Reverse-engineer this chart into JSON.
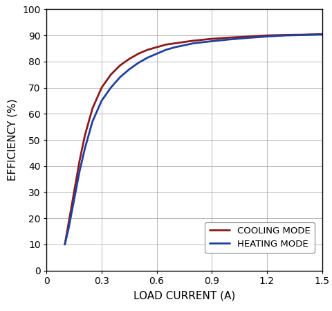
{
  "xlabel": "LOAD CURRENT (A)",
  "ylabel": "EFFICIENCY (%)",
  "xlim": [
    0,
    1.5
  ],
  "ylim": [
    0,
    100
  ],
  "xticks": [
    0,
    0.3,
    0.6,
    0.9,
    1.2,
    1.5
  ],
  "yticks": [
    0,
    10,
    20,
    30,
    40,
    50,
    60,
    70,
    80,
    90,
    100
  ],
  "cooling_color": "#8B1A1A",
  "heating_color": "#2040A0",
  "cooling_label": "COOLING MODE",
  "heating_label": "HEATING MODE",
  "cooling_x": [
    0.1,
    0.12,
    0.15,
    0.18,
    0.21,
    0.25,
    0.3,
    0.35,
    0.4,
    0.45,
    0.5,
    0.55,
    0.6,
    0.65,
    0.7,
    0.8,
    0.9,
    1.0,
    1.1,
    1.2,
    1.3,
    1.4,
    1.5
  ],
  "cooling_y": [
    10,
    18,
    30,
    42,
    52,
    62,
    70,
    75,
    78.5,
    81,
    83,
    84.5,
    85.5,
    86.5,
    87.0,
    88.0,
    88.7,
    89.2,
    89.6,
    90.0,
    90.2,
    90.3,
    90.5
  ],
  "heating_x": [
    0.1,
    0.12,
    0.15,
    0.18,
    0.21,
    0.25,
    0.3,
    0.35,
    0.4,
    0.45,
    0.5,
    0.55,
    0.6,
    0.65,
    0.7,
    0.8,
    0.9,
    1.0,
    1.1,
    1.2,
    1.3,
    1.4,
    1.5
  ],
  "heating_y": [
    10,
    16,
    27,
    38,
    47,
    57,
    65,
    70,
    74,
    77,
    79.5,
    81.5,
    83,
    84.5,
    85.5,
    87.0,
    87.8,
    88.5,
    89.1,
    89.6,
    90.0,
    90.2,
    90.4
  ],
  "line_width": 2.0,
  "background_color": "#ffffff",
  "grid_color": "#999999",
  "tick_fontsize": 10,
  "axis_label_fontsize": 11
}
